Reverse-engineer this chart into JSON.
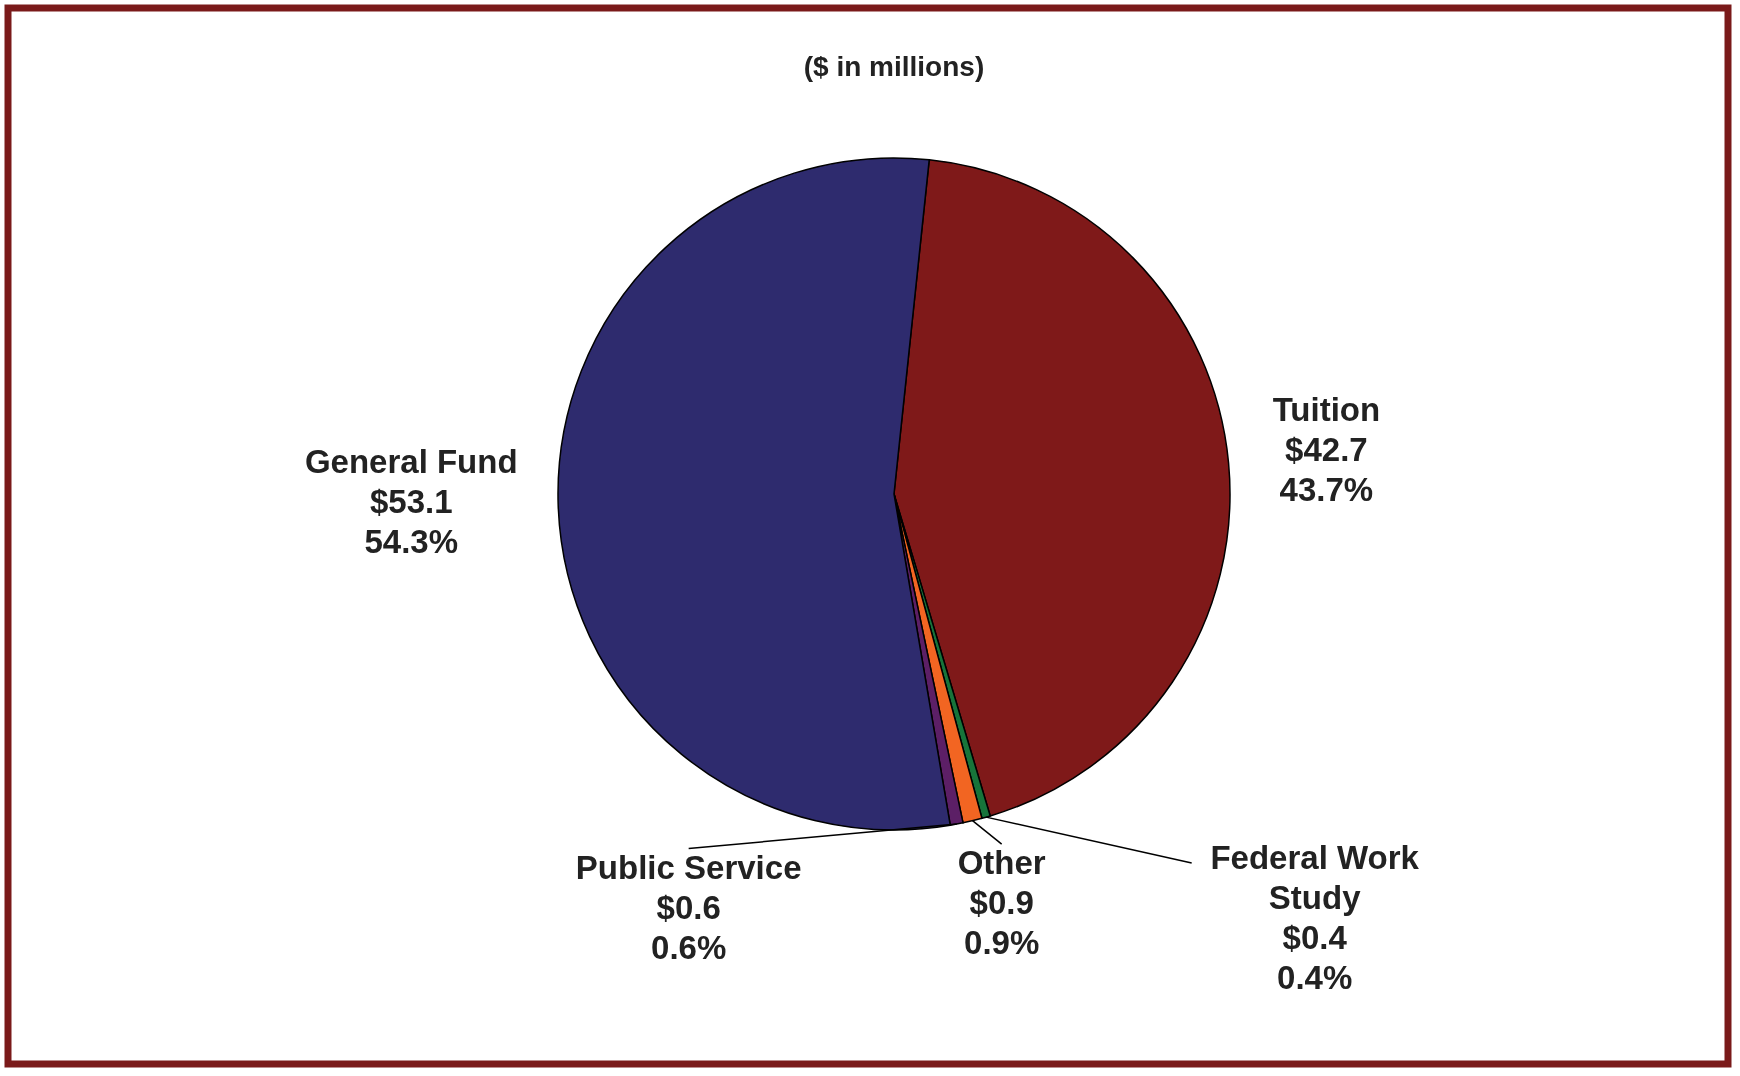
{
  "chart_data": {
    "type": "pie",
    "title": "($ in millions)",
    "categories": [
      "Tuition",
      "Federal Work Study",
      "Other",
      "Public Service",
      "General Fund"
    ],
    "values": [
      42.7,
      0.4,
      0.9,
      0.6,
      53.1
    ],
    "colors": [
      "#7f1919",
      "#17743a",
      "#f26522",
      "#5c1f66",
      "#2e2b6e"
    ],
    "value_labels": [
      "$42.7\n43.7%",
      "$0.4\n0.4%",
      "$0.9\n0.9%",
      "$0.6\n0.6%",
      "$53.1\n54.3%"
    ]
  }
}
